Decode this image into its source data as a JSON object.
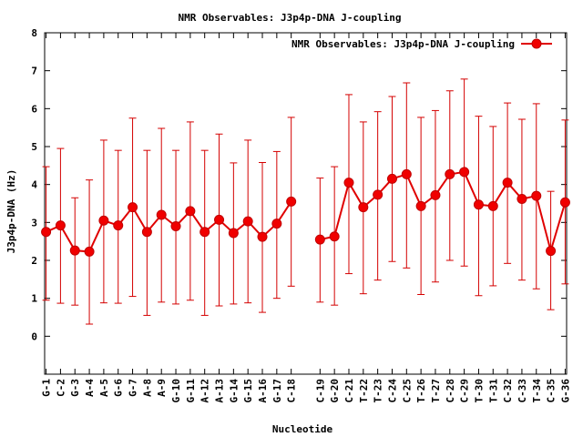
{
  "chart_data": {
    "type": "line",
    "title": "NMR Observables: J3p4p-DNA J-coupling",
    "xlabel": "Nucleotide",
    "ylabel": "J3p4p-DNA (Hz)",
    "ylim": [
      -1,
      8
    ],
    "yticks": [
      0,
      1,
      2,
      3,
      4,
      5,
      6,
      7,
      8
    ],
    "legend": {
      "label": "NMR Observables: J3p4p-DNA J-coupling",
      "position": "top-right"
    },
    "colors": {
      "series": "#f00000",
      "errorbar": "#d40000",
      "axis": "#000000"
    },
    "categories": [
      "G-1",
      "C-2",
      "G-3",
      "A-4",
      "A-5",
      "G-6",
      "G-7",
      "A-8",
      "A-9",
      "G-10",
      "G-11",
      "A-12",
      "A-13",
      "G-14",
      "G-15",
      "A-16",
      "G-17",
      "C-18",
      "C-19",
      "G-20",
      "C-21",
      "T-22",
      "T-23",
      "C-24",
      "C-25",
      "T-26",
      "T-27",
      "C-28",
      "C-29",
      "T-30",
      "T-31",
      "C-32",
      "C-33",
      "T-34",
      "C-35",
      "G-36"
    ],
    "positions": [
      1,
      2,
      3,
      4,
      5,
      6,
      7,
      8,
      9,
      10,
      11,
      12,
      13,
      14,
      15,
      16,
      17,
      18,
      20,
      21,
      22,
      23,
      24,
      25,
      26,
      27,
      28,
      29,
      30,
      31,
      32,
      33,
      34,
      35,
      36,
      37
    ],
    "series": [
      {
        "name": "NMR Observables: J3p4p-DNA J-coupling",
        "segments": [
          [
            0,
            17
          ],
          [
            18,
            35
          ]
        ],
        "values": [
          2.75,
          2.92,
          2.26,
          2.23,
          3.05,
          2.92,
          3.4,
          2.75,
          3.2,
          2.9,
          3.3,
          2.75,
          3.07,
          2.72,
          3.03,
          2.62,
          2.97,
          3.55,
          2.55,
          2.63,
          4.05,
          3.4,
          3.73,
          4.15,
          4.27,
          3.43,
          3.72,
          4.27,
          4.33,
          3.47,
          3.43,
          4.05,
          3.62,
          3.7,
          2.25,
          3.53
        ],
        "err_low": [
          0.95,
          0.87,
          0.82,
          0.32,
          0.88,
          0.87,
          1.05,
          0.55,
          0.9,
          0.85,
          0.95,
          0.55,
          0.8,
          0.85,
          0.88,
          0.63,
          1.0,
          1.32,
          0.9,
          0.82,
          1.65,
          1.12,
          1.48,
          1.97,
          1.8,
          1.1,
          1.43,
          2.0,
          1.85,
          1.07,
          1.33,
          1.92,
          1.48,
          1.25,
          0.7,
          1.38
        ],
        "err_high": [
          4.47,
          4.95,
          3.65,
          4.12,
          5.17,
          4.9,
          5.75,
          4.9,
          5.48,
          4.9,
          5.65,
          4.9,
          5.33,
          4.57,
          5.17,
          4.58,
          4.87,
          5.77,
          4.17,
          4.47,
          6.37,
          5.65,
          5.92,
          6.32,
          6.68,
          5.77,
          5.95,
          6.47,
          6.78,
          5.8,
          5.53,
          6.15,
          5.72,
          6.13,
          3.82,
          5.7
        ]
      }
    ]
  }
}
